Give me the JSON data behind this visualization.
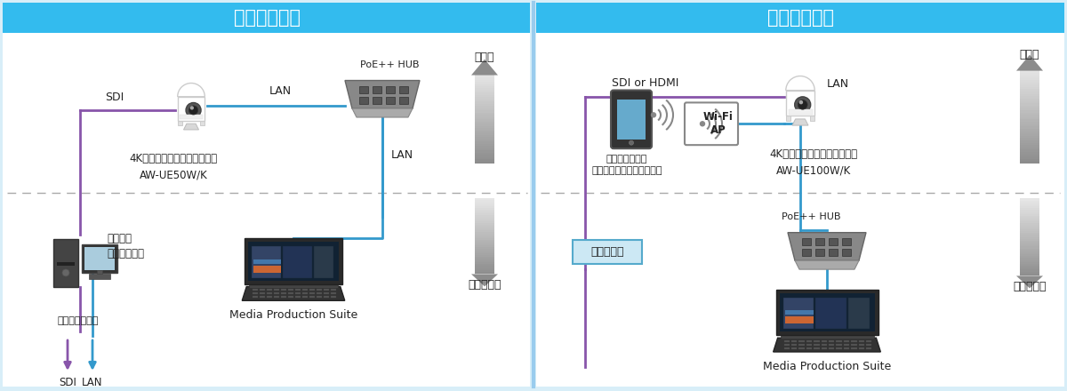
{
  "title1": "《接続例１》",
  "title2": "《接続例２》",
  "title_bg": "#33BBEE",
  "bg_color": "#D8EEF8",
  "panel_bg": "#FFFFFF",
  "blue_line": "#3399CC",
  "purple_line": "#8855AA",
  "label1_camera": "4Kインテグレーテッドカメラ\nAW-UE50W/K",
  "label1_hub": "PoE++ HUB",
  "label1_lan_cam": "LAN",
  "label1_lan_vert": "LAN",
  "label1_sdi": "SDI",
  "label1_classroom": "講義室",
  "label1_monitor_room": "モニター室",
  "label1_system": "講義収録\n配信システム",
  "label1_streaming": "ストリーミング",
  "label1_sdi_out": "SDI",
  "label1_lan_out": "LAN",
  "label1_mps": "Media Production Suite",
  "label2_camera": "4Kインテグレーテッドカメラ\nAW-UE100W/K",
  "label2_hub": "PoE++ HUB",
  "label2_lan": "LAN",
  "label2_sdi": "SDI or HDMI",
  "label2_classroom": "講義室",
  "label2_monitor_room": "モニター室",
  "label2_tablet": "タブレット端末\n講師が自身でコントロール",
  "label2_wifi": "Wi-Fi\nAP",
  "label2_recorder": "レコーダー",
  "label2_mps": "Media Production Suite"
}
